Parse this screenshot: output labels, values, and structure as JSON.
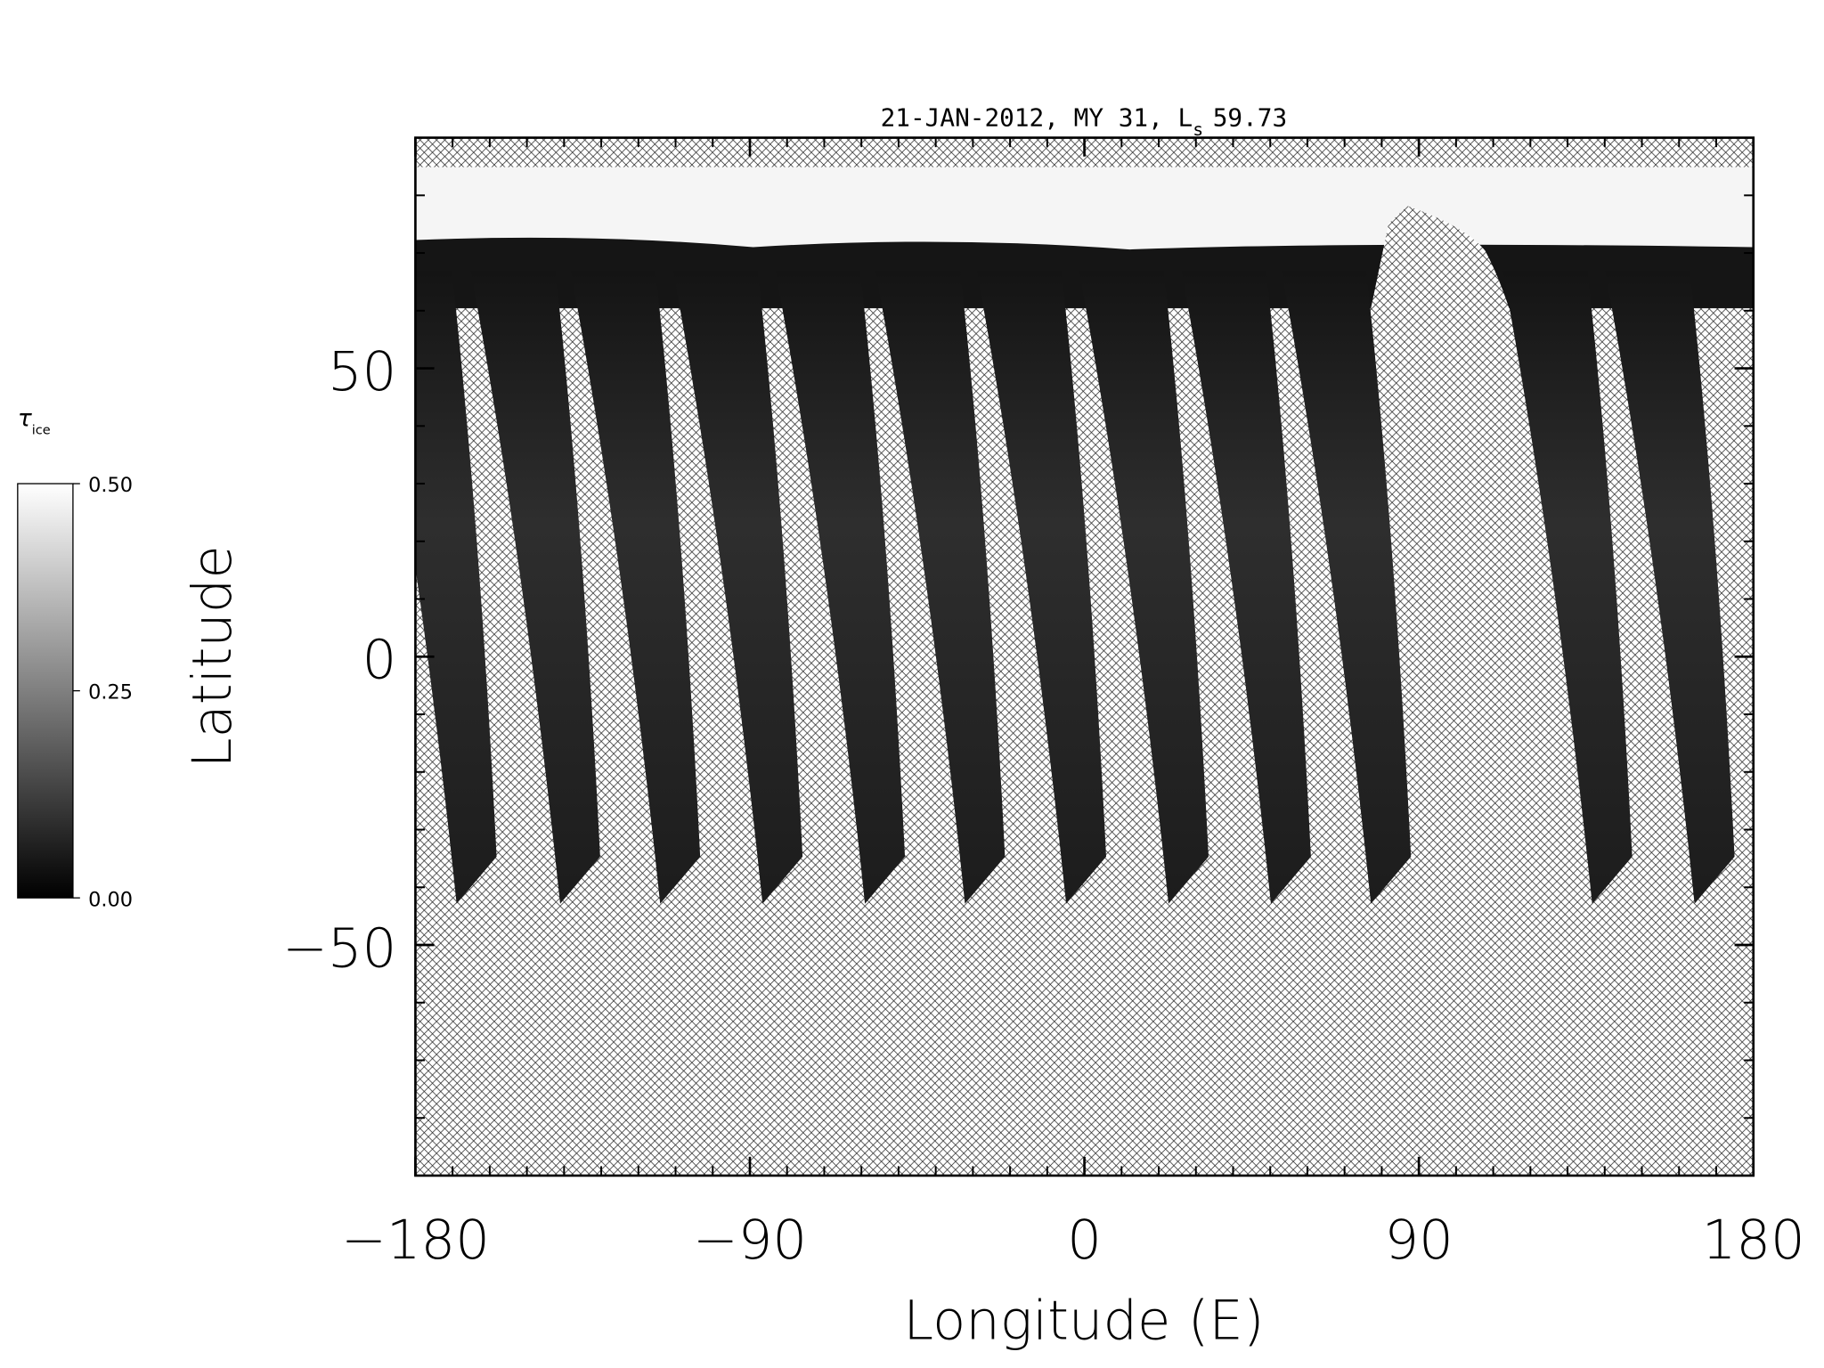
{
  "chart_data": {
    "type": "map",
    "title": {
      "main": "21-JAN-2012, MY 31,  L",
      "subscript": "s",
      "value": "59.73"
    },
    "xlabel": "Longitude (E)",
    "ylabel": "Latitude",
    "xlim": [
      -180,
      180
    ],
    "ylim": [
      -90,
      90
    ],
    "xticks": [
      {
        "value": -180,
        "label": "−180"
      },
      {
        "value": -90,
        "label": "−90"
      },
      0,
      90,
      180
    ],
    "yticks": [
      {
        "value": -50,
        "label": "−50"
      },
      0,
      50
    ],
    "minor_tick_step": 10,
    "colorbar": {
      "label": "τ",
      "label_subscript": "ice",
      "colormap": "gray",
      "lim": [
        0,
        0.5
      ],
      "ticks": [
        {
          "value": 0,
          "label": "0.00"
        },
        {
          "value": 0.25,
          "label": "0.25"
        },
        {
          "value": 0.5,
          "label": "0.50"
        }
      ]
    }
  }
}
